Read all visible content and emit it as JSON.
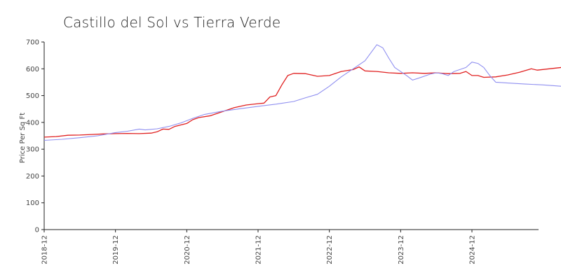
{
  "chart_data": {
    "type": "line",
    "title": "Castillo del Sol vs Tierra Verde",
    "ylabel": "Price Per Sq Ft",
    "xlabel": "",
    "ylim": [
      0,
      700
    ],
    "yticks": [
      0,
      100,
      200,
      300,
      400,
      500,
      600,
      700
    ],
    "xticks": [
      {
        "label": "2018-12",
        "t": 0
      },
      {
        "label": "2019-12",
        "t": 12
      },
      {
        "label": "2020-12",
        "t": 24
      },
      {
        "label": "2021-12",
        "t": 36
      },
      {
        "label": "2022-12",
        "t": 48
      },
      {
        "label": "2023-12",
        "t": 60
      },
      {
        "label": "2024-12",
        "t": 72
      }
    ],
    "xmax_t": 83,
    "grid": false,
    "series": [
      {
        "color": "#e02020",
        "points": [
          [
            0,
            345
          ],
          [
            2,
            347
          ],
          [
            4,
            352
          ],
          [
            6,
            353
          ],
          [
            8,
            355
          ],
          [
            10,
            357
          ],
          [
            12,
            358
          ],
          [
            14,
            359
          ],
          [
            16,
            358
          ],
          [
            18,
            360
          ],
          [
            19,
            365
          ],
          [
            20,
            375
          ],
          [
            21,
            374
          ],
          [
            22,
            385
          ],
          [
            24,
            396
          ],
          [
            25,
            410
          ],
          [
            26,
            418
          ],
          [
            28,
            425
          ],
          [
            30,
            440
          ],
          [
            32,
            455
          ],
          [
            34,
            465
          ],
          [
            36,
            470
          ],
          [
            37,
            472
          ],
          [
            38,
            495
          ],
          [
            39,
            500
          ],
          [
            40,
            540
          ],
          [
            41,
            575
          ],
          [
            42,
            583
          ],
          [
            44,
            582
          ],
          [
            46,
            572
          ],
          [
            48,
            575
          ],
          [
            50,
            590
          ],
          [
            52,
            597
          ],
          [
            53,
            607
          ],
          [
            54,
            592
          ],
          [
            56,
            590
          ],
          [
            58,
            585
          ],
          [
            60,
            583
          ],
          [
            62,
            585
          ],
          [
            64,
            583
          ],
          [
            66,
            585
          ],
          [
            68,
            582
          ],
          [
            70,
            583
          ],
          [
            71,
            590
          ],
          [
            72,
            575
          ],
          [
            73,
            575
          ],
          [
            74,
            568
          ],
          [
            76,
            570
          ],
          [
            78,
            577
          ],
          [
            80,
            587
          ],
          [
            82,
            600
          ],
          [
            83,
            595
          ],
          [
            85,
            600
          ],
          [
            87,
            605
          ],
          [
            89,
            610
          ],
          [
            91,
            612
          ]
        ]
      },
      {
        "color": "#8f8ff0",
        "points": [
          [
            0,
            333
          ],
          [
            3,
            337
          ],
          [
            6,
            343
          ],
          [
            9,
            350
          ],
          [
            12,
            362
          ],
          [
            14,
            367
          ],
          [
            16,
            375
          ],
          [
            17,
            372
          ],
          [
            19,
            376
          ],
          [
            21,
            385
          ],
          [
            23,
            398
          ],
          [
            25,
            415
          ],
          [
            27,
            430
          ],
          [
            30,
            442
          ],
          [
            33,
            451
          ],
          [
            36,
            460
          ],
          [
            39,
            468
          ],
          [
            42,
            478
          ],
          [
            44,
            492
          ],
          [
            46,
            505
          ],
          [
            48,
            535
          ],
          [
            50,
            570
          ],
          [
            52,
            600
          ],
          [
            54,
            630
          ],
          [
            56,
            690
          ],
          [
            57,
            678
          ],
          [
            58,
            640
          ],
          [
            59,
            605
          ],
          [
            61,
            575
          ],
          [
            62,
            558
          ],
          [
            63,
            565
          ],
          [
            65,
            580
          ],
          [
            66,
            585
          ],
          [
            67,
            582
          ],
          [
            68,
            575
          ],
          [
            69,
            590
          ],
          [
            71,
            605
          ],
          [
            72,
            625
          ],
          [
            73,
            620
          ],
          [
            74,
            605
          ],
          [
            75,
            575
          ],
          [
            76,
            550
          ],
          [
            78,
            547
          ],
          [
            81,
            543
          ],
          [
            84,
            540
          ],
          [
            87,
            535
          ],
          [
            90,
            530
          ],
          [
            93,
            527
          ],
          [
            96,
            524
          ],
          [
            98,
            523
          ]
        ]
      }
    ]
  }
}
